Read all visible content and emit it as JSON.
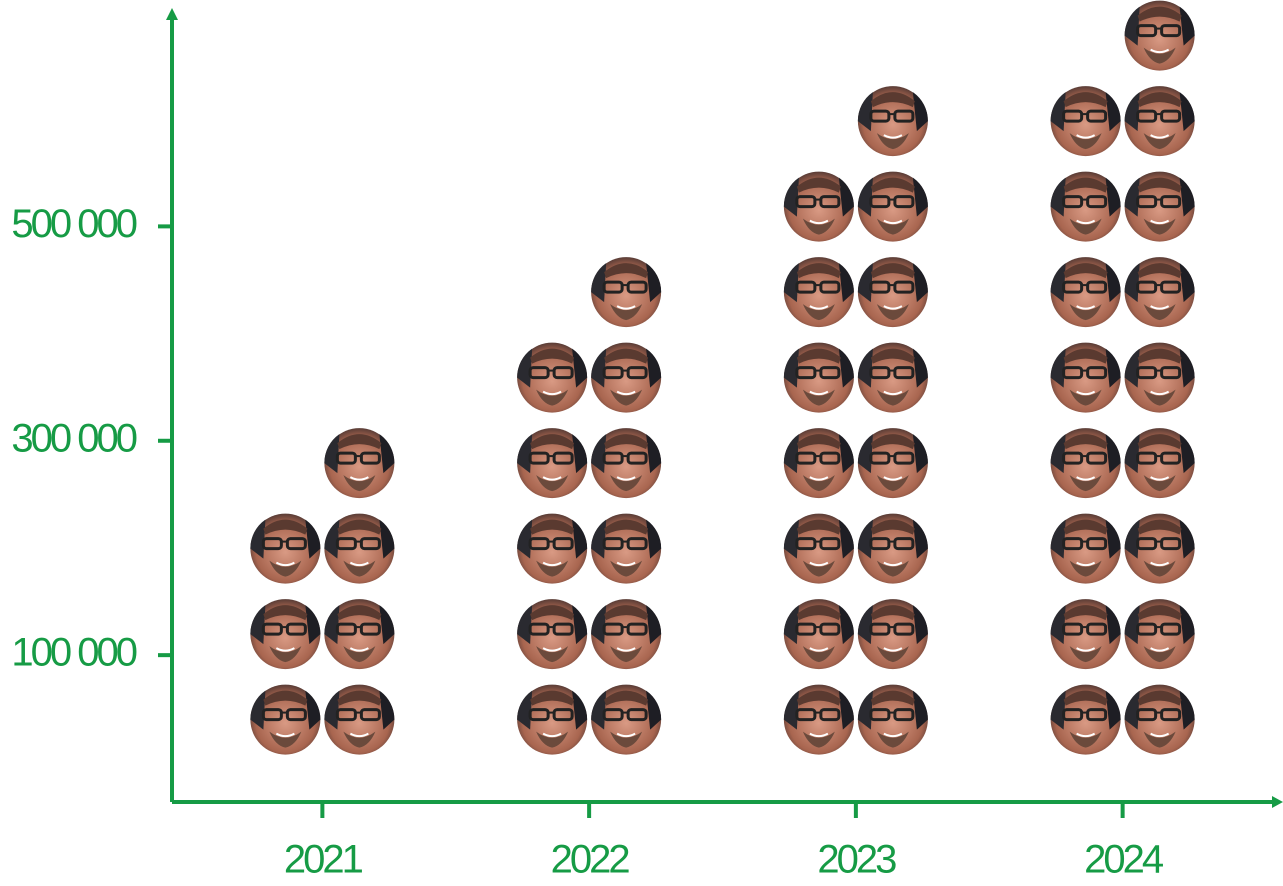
{
  "chart_data": {
    "type": "pictogram",
    "categories": [
      "2021",
      "2022",
      "2023",
      "2024"
    ],
    "values": [
      280000,
      440000,
      600000,
      680000
    ],
    "color": "#169b45",
    "ylim": [
      -37000,
      700000
    ],
    "yticks": [
      {
        "value": 100000,
        "label": "100 000"
      },
      {
        "value": 300000,
        "label": "300 000"
      },
      {
        "value": 500000,
        "label": "500 000"
      }
    ]
  }
}
